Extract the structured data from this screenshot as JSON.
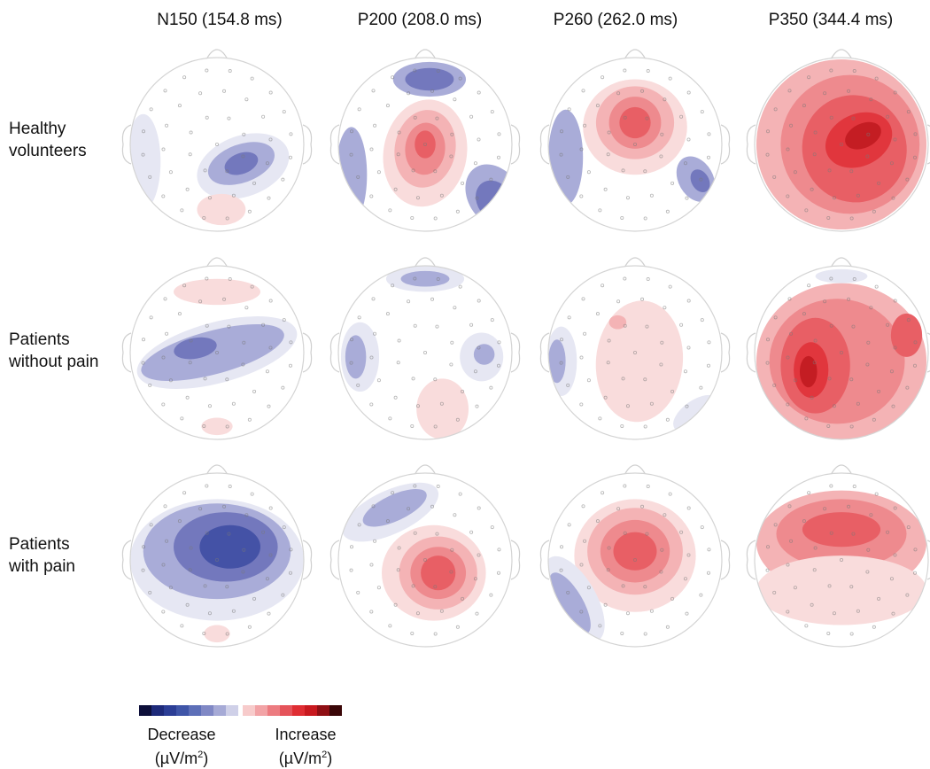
{
  "columns": [
    "N150 (154.8 ms)",
    "P200 (208.0 ms)",
    "P260 (262.0 ms)",
    "P350 (344.4 ms)"
  ],
  "rows": [
    {
      "line1": "Healthy",
      "line2": "volunteers"
    },
    {
      "line1": "Patients",
      "line2": "without pain"
    },
    {
      "line1": "Patients",
      "line2": "with pain"
    }
  ],
  "legend": {
    "decrease_label": "Decrease",
    "increase_label": "Increase",
    "unit_prefix": "(µV/m",
    "unit_exp": "2",
    "unit_suffix": ")",
    "decrease_colors": [
      "#0d0f3a",
      "#1e2a7a",
      "#2c3e96",
      "#3f55a8",
      "#5d6fb8",
      "#8088c5",
      "#a6aad6",
      "#cfd0e8"
    ],
    "increase_colors": [
      "#f7cbcb",
      "#f2a3a6",
      "#ec7b80",
      "#e5535a",
      "#df2d33",
      "#c8191f",
      "#8f0f14",
      "#3a0607"
    ]
  },
  "topomaps": [
    [
      {
        "blobs": [
          [
            0.3,
            0.25,
            0.55,
            0.35,
            -20,
            1
          ],
          [
            0.28,
            0.22,
            0.4,
            0.22,
            -20,
            2
          ],
          [
            0.28,
            0.22,
            0.2,
            0.12,
            -20,
            3
          ],
          [
            -0.85,
            0.2,
            0.2,
            0.55,
            0,
            1
          ],
          [
            0.05,
            0.75,
            0.28,
            0.18,
            0,
            -1
          ]
        ]
      },
      {
        "blobs": [
          [
            0.0,
            0.1,
            0.48,
            0.62,
            10,
            -1
          ],
          [
            0.0,
            0.05,
            0.35,
            0.45,
            10,
            -2
          ],
          [
            0.0,
            0.05,
            0.23,
            0.3,
            5,
            -3
          ],
          [
            0.0,
            0.0,
            0.12,
            0.16,
            0,
            -4
          ],
          [
            0.05,
            -0.75,
            0.42,
            0.2,
            0,
            2
          ],
          [
            0.05,
            -0.75,
            0.28,
            0.13,
            0,
            3
          ],
          [
            -0.85,
            0.35,
            0.18,
            0.55,
            0,
            2
          ],
          [
            0.8,
            0.6,
            0.3,
            0.4,
            -35,
            2
          ],
          [
            0.8,
            0.65,
            0.2,
            0.25,
            -35,
            3
          ]
        ]
      },
      {
        "blobs": [
          [
            0.0,
            -0.2,
            0.6,
            0.55,
            0,
            -1
          ],
          [
            0.0,
            -0.25,
            0.45,
            0.42,
            0,
            -2
          ],
          [
            0.0,
            -0.25,
            0.3,
            0.3,
            0,
            -3
          ],
          [
            0.0,
            -0.25,
            0.18,
            0.18,
            0,
            -4
          ],
          [
            -0.8,
            0.15,
            0.2,
            0.55,
            0,
            2
          ],
          [
            0.7,
            0.4,
            0.2,
            0.28,
            -30,
            2
          ],
          [
            0.75,
            0.42,
            0.1,
            0.14,
            -30,
            3
          ]
        ]
      },
      {
        "blobs": [
          [
            0.0,
            0.0,
            0.98,
            0.98,
            0,
            -2
          ],
          [
            0.1,
            0.0,
            0.8,
            0.8,
            0,
            -3
          ],
          [
            0.15,
            0.05,
            0.6,
            0.62,
            -20,
            -4
          ],
          [
            0.2,
            -0.05,
            0.4,
            0.3,
            -25,
            -5
          ],
          [
            0.25,
            -0.1,
            0.22,
            0.14,
            -25,
            -6
          ]
        ]
      }
    ],
    [
      {
        "blobs": [
          [
            0.0,
            0.0,
            0.95,
            0.35,
            -15,
            1
          ],
          [
            -0.05,
            0.0,
            0.85,
            0.25,
            -15,
            2
          ],
          [
            -0.25,
            -0.05,
            0.25,
            0.12,
            -10,
            3
          ],
          [
            0.0,
            -0.7,
            0.5,
            0.15,
            0,
            -1
          ],
          [
            0.0,
            0.85,
            0.18,
            0.1,
            0,
            -1
          ]
        ]
      },
      {
        "blobs": [
          [
            0.0,
            -0.85,
            0.45,
            0.15,
            0,
            1
          ],
          [
            0.0,
            -0.85,
            0.28,
            0.09,
            0,
            2
          ],
          [
            -0.75,
            0.05,
            0.22,
            0.4,
            0,
            1
          ],
          [
            -0.8,
            0.05,
            0.12,
            0.25,
            0,
            2
          ],
          [
            0.65,
            0.05,
            0.25,
            0.28,
            0,
            1
          ],
          [
            0.68,
            0.02,
            0.12,
            0.12,
            0,
            2
          ],
          [
            0.2,
            0.65,
            0.3,
            0.35,
            0,
            -1
          ]
        ]
      },
      {
        "blobs": [
          [
            0.05,
            0.1,
            0.5,
            0.7,
            5,
            -1
          ],
          [
            -0.2,
            -0.35,
            0.1,
            0.08,
            0,
            -2
          ],
          [
            -0.85,
            0.1,
            0.18,
            0.4,
            0,
            1
          ],
          [
            -0.9,
            0.1,
            0.1,
            0.25,
            0,
            2
          ],
          [
            0.7,
            0.7,
            0.3,
            0.15,
            -35,
            1
          ]
        ]
      },
      {
        "blobs": [
          [
            0.0,
            0.1,
            0.98,
            0.9,
            0,
            -2
          ],
          [
            -0.05,
            0.1,
            0.78,
            0.72,
            0,
            -3
          ],
          [
            -0.3,
            0.15,
            0.4,
            0.55,
            0,
            -4
          ],
          [
            -0.35,
            0.2,
            0.2,
            0.32,
            0,
            -5
          ],
          [
            -0.38,
            0.22,
            0.1,
            0.18,
            0,
            -6
          ],
          [
            0.75,
            -0.2,
            0.18,
            0.25,
            0,
            -4
          ],
          [
            0.0,
            -0.88,
            0.3,
            0.08,
            0,
            1
          ]
        ]
      }
    ],
    [
      {
        "blobs": [
          [
            0.0,
            0.0,
            1.0,
            0.7,
            0,
            1
          ],
          [
            0.0,
            -0.1,
            0.85,
            0.55,
            0,
            2
          ],
          [
            0.1,
            -0.15,
            0.6,
            0.4,
            0,
            3
          ],
          [
            0.15,
            -0.15,
            0.35,
            0.25,
            0,
            4
          ],
          [
            0.0,
            0.85,
            0.15,
            0.1,
            0,
            -1
          ]
        ]
      },
      {
        "blobs": [
          [
            0.0,
            0.0,
            0.95,
            0.95,
            0,
            0
          ],
          [
            -0.4,
            -0.55,
            0.6,
            0.25,
            -25,
            1
          ],
          [
            -0.35,
            -0.6,
            0.4,
            0.15,
            -25,
            2
          ],
          [
            0.1,
            0.15,
            0.6,
            0.55,
            0,
            -1
          ],
          [
            0.15,
            0.15,
            0.45,
            0.42,
            0,
            -2
          ],
          [
            0.15,
            0.15,
            0.32,
            0.3,
            0,
            -3
          ],
          [
            0.15,
            0.15,
            0.2,
            0.2,
            0,
            -4
          ]
        ]
      },
      {
        "blobs": [
          [
            0.0,
            -0.05,
            0.7,
            0.65,
            0,
            -1
          ],
          [
            0.0,
            -0.1,
            0.55,
            0.5,
            0,
            -2
          ],
          [
            0.0,
            -0.1,
            0.4,
            0.36,
            0,
            -3
          ],
          [
            0.0,
            -0.1,
            0.25,
            0.22,
            0,
            -4
          ],
          [
            -0.7,
            0.45,
            0.25,
            0.55,
            -30,
            1
          ],
          [
            -0.75,
            0.5,
            0.15,
            0.4,
            -30,
            2
          ]
        ]
      },
      {
        "blobs": [
          [
            0.0,
            -0.2,
            0.98,
            0.6,
            0,
            -2
          ],
          [
            0.0,
            -0.3,
            0.75,
            0.4,
            0,
            -3
          ],
          [
            0.0,
            -0.35,
            0.45,
            0.2,
            0,
            -4
          ],
          [
            0.0,
            0.35,
            0.98,
            0.4,
            0,
            -1
          ]
        ]
      }
    ]
  ]
}
